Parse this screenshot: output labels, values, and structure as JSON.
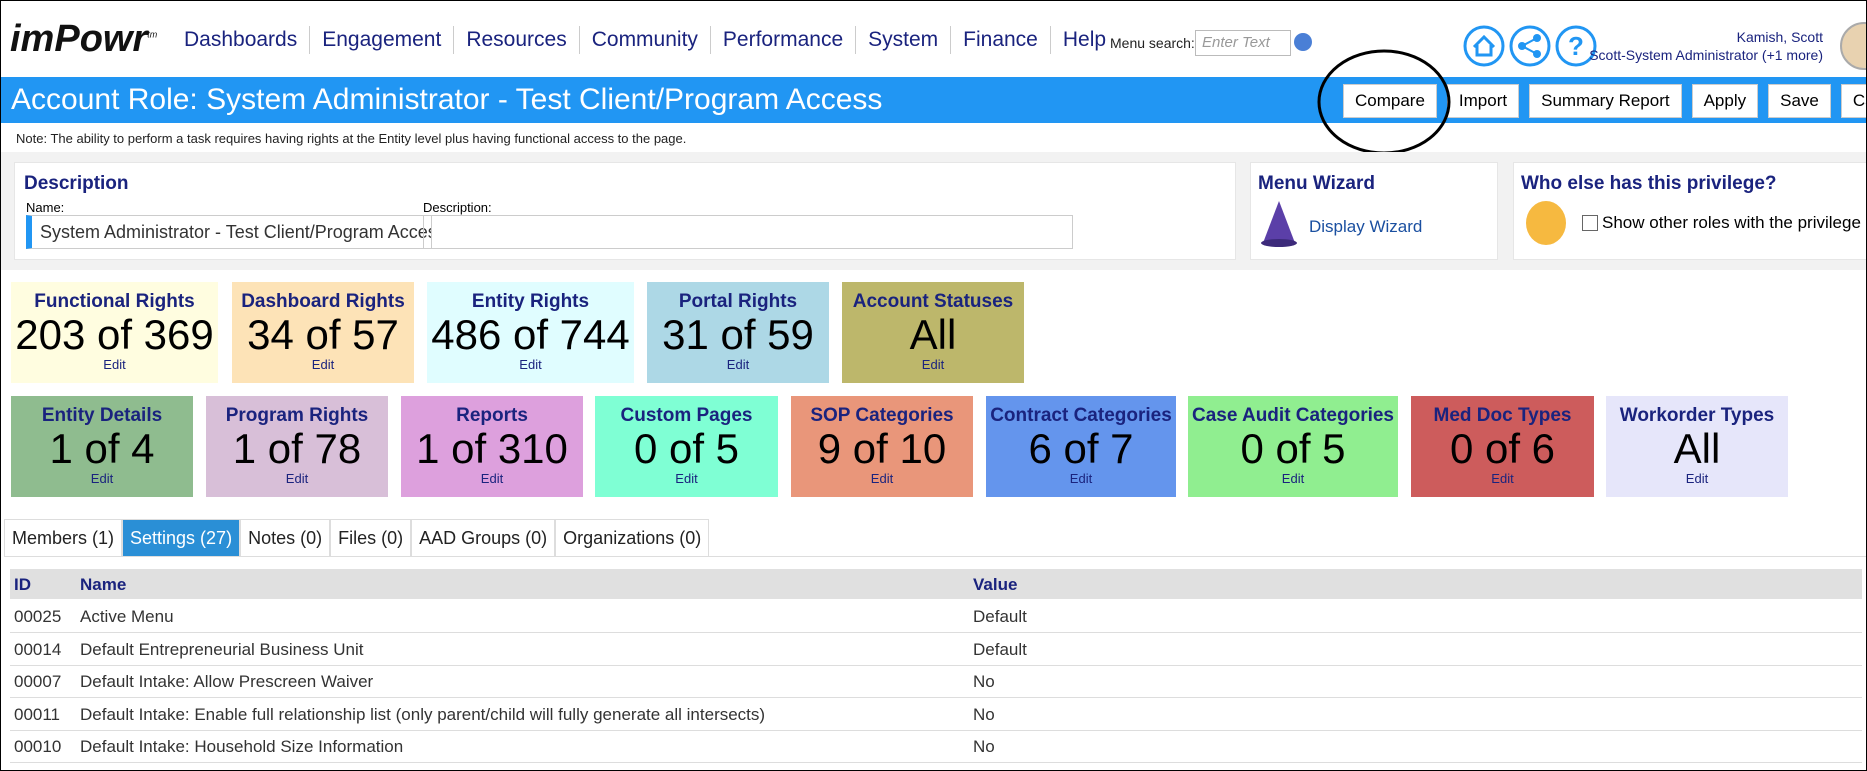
{
  "header": {
    "logo": "imPowr",
    "logo_mark": "tm",
    "nav": [
      "Dashboards",
      "Engagement",
      "Resources",
      "Community",
      "Performance",
      "System",
      "Finance",
      "Help"
    ],
    "menu_search_label": "Menu search:",
    "search_placeholder": "Enter Text",
    "user_name": "Kamish, Scott",
    "user_role": "Scott-System Administrator (+1 more)"
  },
  "title_bar": {
    "title": "Account Role: System Administrator - Test Client/Program Access",
    "buttons": [
      "Compare",
      "Import",
      "Summary Report",
      "Apply",
      "Save",
      "Cancel"
    ]
  },
  "note": "Note: The ability to perform a task requires having rights at the Entity level plus having functional access to the page.",
  "description": {
    "heading": "Description",
    "name_label": "Name:",
    "name_value": "System Administrator - Test Client/Program Access",
    "description_label": "Description:"
  },
  "menu_wizard": {
    "heading": "Menu Wizard",
    "link": "Display Wizard"
  },
  "privilege": {
    "heading": "Who else has this privilege?",
    "checkbox_label": "Show other roles with the privilege"
  },
  "tiles_row1": [
    {
      "title": "Functional Rights",
      "value": "203 of 369",
      "edit": "Edit",
      "color": "#fffde0"
    },
    {
      "title": "Dashboard Rights",
      "value": "34 of 57",
      "edit": "Edit",
      "color": "#fde3b7"
    },
    {
      "title": "Entity Rights",
      "value": "486 of 744",
      "edit": "Edit",
      "color": "#e0fdff"
    },
    {
      "title": "Portal Rights",
      "value": "31 of 59",
      "edit": "Edit",
      "color": "#add8e6"
    },
    {
      "title": "Account Statuses",
      "value": "All",
      "edit": "Edit",
      "color": "#bdb76b"
    }
  ],
  "tiles_row2": [
    {
      "title": "Entity Details",
      "value": "1 of 4",
      "edit": "Edit",
      "color": "#8fbc8f"
    },
    {
      "title": "Program Rights",
      "value": "1 of 78",
      "edit": "Edit",
      "color": "#d8bfd8"
    },
    {
      "title": "Reports",
      "value": "1 of 310",
      "edit": "Edit",
      "color": "#dda0dd"
    },
    {
      "title": "Custom Pages",
      "value": "0 of 5",
      "edit": "Edit",
      "color": "#7fffd4"
    },
    {
      "title": "SOP Categories",
      "value": "9 of 10",
      "edit": "Edit",
      "color": "#e9967a"
    },
    {
      "title": "Contract Categories",
      "value": "6 of 7",
      "edit": "Edit",
      "color": "#6495ed"
    },
    {
      "title": "Case Audit Categories",
      "value": "0 of 5",
      "edit": "Edit",
      "color": "#90ee90"
    },
    {
      "title": "Med Doc Types",
      "value": "0 of 6",
      "edit": "Edit",
      "color": "#cd5c5c"
    },
    {
      "title": "Workorder Types",
      "value": "All",
      "edit": "Edit",
      "color": "#e6e6fa"
    }
  ],
  "tabs": [
    "Members (1)",
    "Settings (27)",
    "Notes (0)",
    "Files (0)",
    "AAD Groups (0)",
    "Organizations (0)"
  ],
  "active_tab": 1,
  "table": {
    "columns": [
      "ID",
      "Name",
      "Value"
    ],
    "rows": [
      [
        "00025",
        "Active Menu",
        "Default"
      ],
      [
        "00014",
        "Default Entrepreneurial Business Unit",
        "Default"
      ],
      [
        "00007",
        "Default Intake: Allow Prescreen Waiver",
        "No"
      ],
      [
        "00011",
        "Default Intake: Enable full relationship list (only parent/child will fully generate all intersects)",
        "No"
      ],
      [
        "00010",
        "Default Intake: Household Size Information",
        "No"
      ]
    ]
  }
}
